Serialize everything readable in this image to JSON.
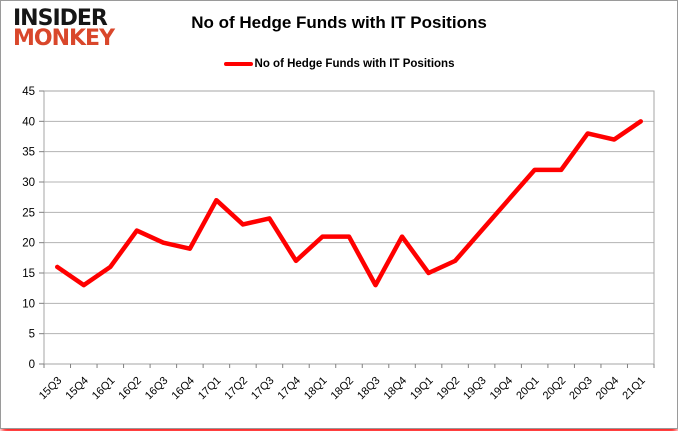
{
  "logo": {
    "line1": "INSIDER",
    "line2": "MONKEY"
  },
  "header": {
    "title": "No of Hedge Funds with IT Positions"
  },
  "legend": {
    "label": "No of Hedge Funds with IT Positions"
  },
  "colors": {
    "series_line": "#ff0000",
    "gridline": "#b3b3b3",
    "plot_border": "#a6a6a6",
    "tick": "#808080",
    "axis_text": "#000000",
    "logo_black": "#161616",
    "logo_red": "#d9472b",
    "glow": "#ff0000"
  },
  "chart_data": {
    "type": "line",
    "title": "No of Hedge Funds with IT Positions",
    "xlabel": "",
    "ylabel": "",
    "categories": [
      "15Q3",
      "15Q4",
      "16Q1",
      "16Q2",
      "16Q3",
      "16Q4",
      "17Q1",
      "17Q2",
      "17Q3",
      "17Q4",
      "18Q1",
      "18Q2",
      "18Q3",
      "18Q4",
      "19Q1",
      "19Q2",
      "19Q3",
      "19Q4",
      "20Q1",
      "20Q2",
      "20Q3",
      "20Q4",
      "21Q1"
    ],
    "series": [
      {
        "name": "No of Hedge Funds with IT Positions",
        "color": "#ff0000",
        "values": [
          16,
          13,
          16,
          22,
          20,
          19,
          27,
          23,
          24,
          17,
          21,
          21,
          13,
          21,
          15,
          17,
          22,
          27,
          32,
          32,
          38,
          37,
          40
        ]
      }
    ],
    "ylim": [
      0,
      45
    ],
    "ytick_step": 5,
    "grid": true,
    "legend_position": "top-center"
  }
}
